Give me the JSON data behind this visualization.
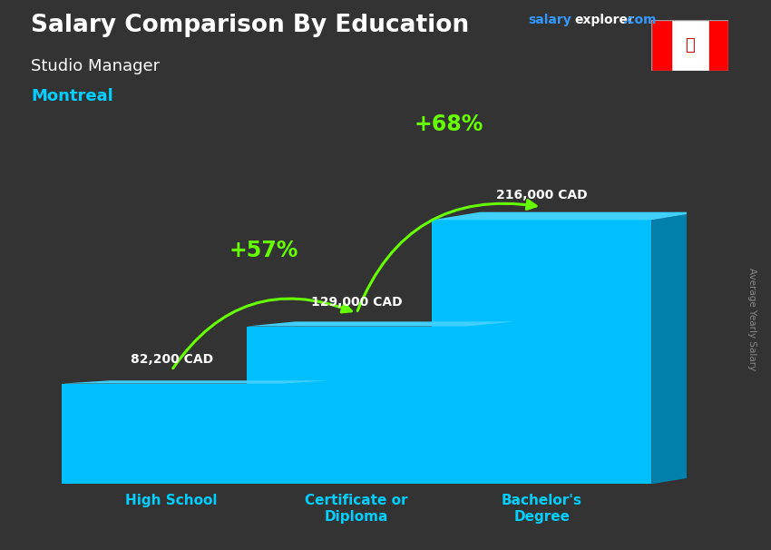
{
  "title": "Salary Comparison By Education",
  "subtitle": "Studio Manager",
  "location": "Montreal",
  "site_salary": "salary",
  "site_explorer": "explorer",
  "site_com": ".com",
  "y_label": "Average Yearly Salary",
  "categories": [
    "High School",
    "Certificate or\nDiploma",
    "Bachelor's\nDegree"
  ],
  "values": [
    82200,
    129000,
    216000
  ],
  "value_labels": [
    "82,200 CAD",
    "129,000 CAD",
    "216,000 CAD"
  ],
  "pct_changes": [
    "+57%",
    "+68%"
  ],
  "bar_face_color": "#00BFFF",
  "bar_side_color": "#0080AA",
  "bar_top_color": "#40D0FF",
  "bg_color": "#333333",
  "title_color": "#ffffff",
  "subtitle_color": "#ffffff",
  "location_color": "#00CFFF",
  "label_color": "#00CFFF",
  "value_color": "#ffffff",
  "pct_color": "#66FF00",
  "arrow_color": "#66FF00",
  "ylabel_color": "#888888",
  "bar_width": 0.38,
  "ylim_max": 270000,
  "bar_positions": [
    0.18,
    0.5,
    0.82
  ]
}
